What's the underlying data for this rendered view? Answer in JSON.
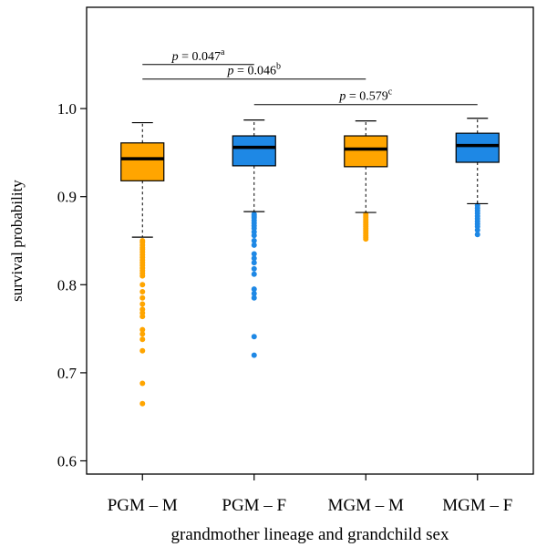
{
  "chart_data": {
    "type": "box",
    "xlabel": "grandmother lineage and grandchild sex",
    "ylabel": "survival probability",
    "ylim": [
      0.585,
      1.115
    ],
    "yticks": [
      "0.6",
      "0.7",
      "0.8",
      "0.9",
      "1.0"
    ],
    "ytick_values": [
      0.6,
      0.7,
      0.8,
      0.9,
      1.0
    ],
    "categories": [
      "PGM – M",
      "PGM – F",
      "MGM – M",
      "MGM – F"
    ],
    "colors": {
      "orange": "#FFA500",
      "blue": "#1E88E5",
      "median": "#000000"
    },
    "boxes": [
      {
        "label": "PGM – M",
        "color": "orange",
        "whisker_low": 0.854,
        "q1": 0.918,
        "median": 0.943,
        "q3": 0.961,
        "whisker_high": 0.984,
        "outliers": [
          0.85,
          0.848,
          0.845,
          0.842,
          0.84,
          0.837,
          0.834,
          0.831,
          0.828,
          0.825,
          0.822,
          0.819,
          0.816,
          0.813,
          0.81,
          0.8,
          0.792,
          0.785,
          0.778,
          0.772,
          0.768,
          0.764,
          0.749,
          0.744,
          0.738,
          0.725,
          0.688,
          0.665
        ]
      },
      {
        "label": "PGM – F",
        "color": "blue",
        "whisker_low": 0.883,
        "q1": 0.935,
        "median": 0.956,
        "q3": 0.969,
        "whisker_high": 0.987,
        "outliers": [
          0.88,
          0.878,
          0.876,
          0.873,
          0.87,
          0.867,
          0.864,
          0.86,
          0.856,
          0.85,
          0.845,
          0.835,
          0.83,
          0.825,
          0.818,
          0.812,
          0.795,
          0.79,
          0.785,
          0.741,
          0.72
        ]
      },
      {
        "label": "MGM – M",
        "color": "orange",
        "whisker_low": 0.882,
        "q1": 0.934,
        "median": 0.954,
        "q3": 0.969,
        "whisker_high": 0.986,
        "outliers": [
          0.88,
          0.878,
          0.876,
          0.874,
          0.872,
          0.87,
          0.868,
          0.866,
          0.864,
          0.862,
          0.86,
          0.858,
          0.856,
          0.854,
          0.852
        ]
      },
      {
        "label": "MGM – F",
        "color": "blue",
        "whisker_low": 0.892,
        "q1": 0.939,
        "median": 0.958,
        "q3": 0.972,
        "whisker_high": 0.989,
        "outliers": [
          0.89,
          0.887,
          0.884,
          0.881,
          0.878,
          0.875,
          0.872,
          0.869,
          0.866,
          0.862,
          0.857
        ]
      }
    ],
    "annotations": [
      {
        "p": "0.047",
        "sup": "a",
        "from": 0,
        "to": 1,
        "level": 1.05
      },
      {
        "p": "0.046",
        "sup": "b",
        "from": 0,
        "to": 2,
        "level": 1.0335
      },
      {
        "p": "0.579",
        "sup": "c",
        "from": 1,
        "to": 3,
        "level": 1.0045
      }
    ],
    "annotation_prefix": "p",
    "annotation_eq": " = ",
    "grid": false,
    "legend": "none"
  }
}
